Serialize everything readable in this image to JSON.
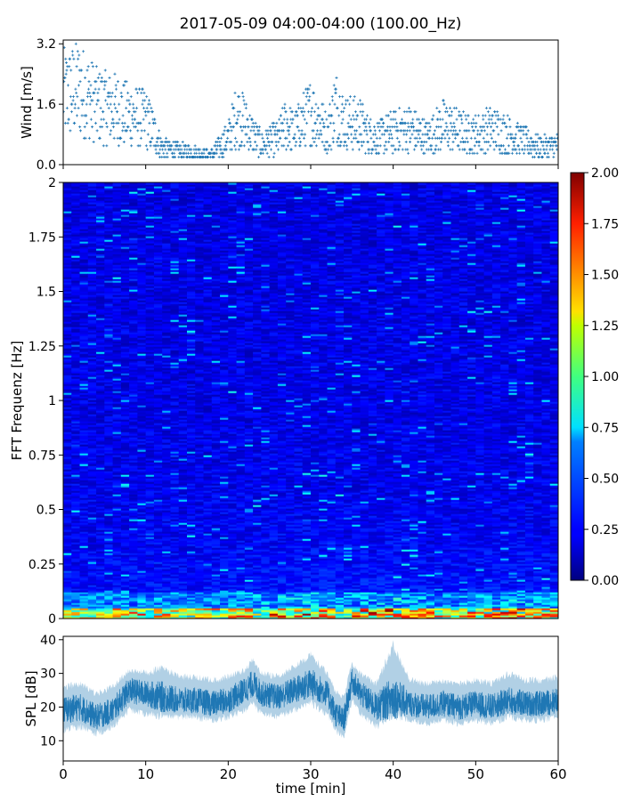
{
  "figure": {
    "title": "2017-05-09 04:00-04:00 (100.00_Hz)"
  },
  "chart_data": [
    {
      "type": "scatter",
      "ylabel": "Wind [m/s]",
      "xlim": [
        0,
        60
      ],
      "ylim": [
        0,
        3.3
      ],
      "yticks": [
        0.0,
        1.6,
        3.2
      ],
      "ytick_labels": [
        "0.0",
        "1.6",
        "3.2"
      ],
      "marker": "+",
      "color": "#1f77b4",
      "series": [
        {
          "x": [
            0,
            2,
            4,
            6,
            8,
            10,
            11,
            12,
            14,
            16,
            18,
            20,
            21,
            22,
            23,
            24,
            26,
            27,
            28,
            30,
            31,
            32,
            33,
            34,
            36,
            37,
            38,
            40,
            42,
            44,
            46,
            48,
            50,
            52,
            54,
            56,
            58,
            60
          ],
          "y": [
            2.1,
            2.3,
            1.8,
            1.7,
            1.5,
            1.4,
            1.0,
            0.5,
            0.4,
            0.35,
            0.3,
            0.8,
            1.5,
            1.3,
            0.9,
            0.6,
            0.8,
            1.2,
            1.0,
            1.6,
            1.4,
            0.9,
            1.8,
            1.3,
            1.2,
            0.9,
            0.8,
            1.0,
            1.1,
            0.8,
            1.2,
            1.0,
            0.9,
            1.1,
            0.9,
            0.7,
            0.5,
            0.6
          ]
        }
      ]
    },
    {
      "type": "heatmap",
      "ylabel": "FFT Frequenz [Hz]",
      "xlim": [
        0,
        60
      ],
      "ylim": [
        0,
        2
      ],
      "yticks": [
        0,
        0.25,
        0.5,
        0.75,
        1,
        1.25,
        1.5,
        1.75,
        2
      ],
      "ytick_labels": [
        "0",
        "0.25",
        "0.5",
        "0.75",
        "1",
        "1.25",
        "1.5",
        "1.75",
        "2"
      ],
      "colormap": "jet",
      "colorbar": {
        "range": [
          0,
          2
        ],
        "ticks": [
          0.0,
          0.25,
          0.5,
          0.75,
          1.0,
          1.25,
          1.5,
          1.75,
          2.0
        ],
        "tick_labels": [
          "0.00",
          "0.25",
          "0.50",
          "0.75",
          "1.00",
          "1.25",
          "1.50",
          "1.75",
          "2.00"
        ]
      },
      "time_profile_min": [
        0,
        5,
        10,
        15,
        20,
        25,
        30,
        35,
        40,
        45,
        50,
        55,
        60
      ],
      "time_profile_level": [
        0.8,
        0.9,
        1.1,
        0.9,
        1.0,
        1.2,
        1.3,
        1.1,
        1.4,
        1.0,
        1.1,
        1.2,
        1.0
      ],
      "low_band_hz": [
        0.0,
        0.05
      ],
      "low_band_level": [
        1.2,
        2.0
      ]
    },
    {
      "type": "area",
      "ylabel": "SPL [dB]",
      "xlabel": "time [min]",
      "xlim": [
        0,
        60
      ],
      "ylim": [
        4,
        41
      ],
      "yticks": [
        10,
        20,
        30,
        40
      ],
      "ytick_labels": [
        "10",
        "20",
        "30",
        "40"
      ],
      "xticks": [
        0,
        10,
        20,
        30,
        40,
        50,
        60
      ],
      "xtick_labels": [
        "0",
        "10",
        "20",
        "30",
        "40",
        "50",
        "60"
      ],
      "color": "#1f77b4",
      "series": [
        {
          "x": [
            0,
            2,
            4,
            6,
            8,
            10,
            12,
            14,
            16,
            18,
            20,
            22,
            23,
            24,
            26,
            28,
            30,
            32,
            33,
            34,
            35,
            36,
            38,
            40,
            42,
            44,
            46,
            48,
            50,
            52,
            54,
            56,
            58,
            60
          ],
          "y_mean": [
            19,
            20,
            17,
            19,
            25,
            24,
            23,
            22,
            22,
            21,
            22,
            25,
            27,
            24,
            23,
            25,
            27,
            24,
            18,
            16,
            28,
            24,
            20,
            23,
            21,
            20,
            21,
            20,
            21,
            20,
            22,
            21,
            21,
            22
          ],
          "y_low": [
            12,
            13,
            11,
            13,
            18,
            17,
            16,
            16,
            16,
            15,
            16,
            18,
            20,
            17,
            16,
            18,
            20,
            17,
            12,
            10,
            21,
            17,
            13,
            16,
            15,
            14,
            15,
            14,
            15,
            14,
            16,
            15,
            15,
            16
          ],
          "y_high": [
            27,
            28,
            25,
            27,
            32,
            31,
            33,
            30,
            30,
            29,
            30,
            32,
            35,
            31,
            30,
            33,
            37,
            31,
            26,
            24,
            34,
            31,
            28,
            40,
            29,
            28,
            29,
            28,
            29,
            28,
            31,
            29,
            29,
            30
          ]
        }
      ]
    }
  ]
}
